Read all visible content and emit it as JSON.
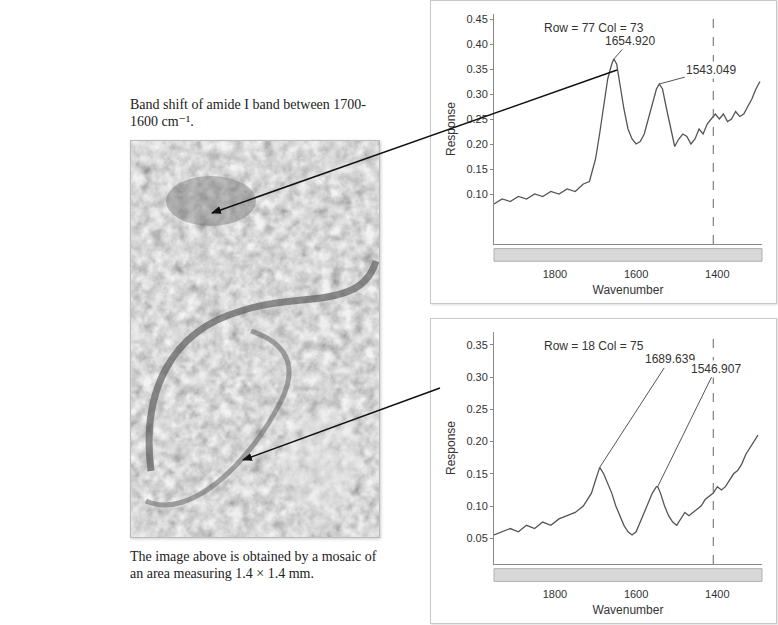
{
  "figure": {
    "title": "Band shift of amide I band between 1700-1600 cm⁻¹.",
    "caption": "The image above is obtained by a mosaic of an area measuring 1.4 × 1.4 mm."
  },
  "chart_data": [
    {
      "type": "line",
      "title": "Row = 77 Col = 73",
      "x_label": "Wavenumber",
      "y_label": "Response",
      "color": "#555555",
      "x": [
        1950,
        1930,
        1910,
        1890,
        1870,
        1850,
        1830,
        1810,
        1790,
        1770,
        1750,
        1730,
        1715,
        1700,
        1690,
        1680,
        1670,
        1660,
        1654.92,
        1648,
        1640,
        1630,
        1620,
        1610,
        1600,
        1590,
        1580,
        1570,
        1560,
        1550,
        1543.049,
        1535,
        1525,
        1515,
        1505,
        1495,
        1485,
        1475,
        1465,
        1455,
        1445,
        1435,
        1425,
        1415,
        1405,
        1395,
        1385,
        1375,
        1365,
        1355,
        1345,
        1335,
        1325,
        1315,
        1305,
        1295
      ],
      "values": [
        0.08,
        0.09,
        0.085,
        0.095,
        0.09,
        0.1,
        0.095,
        0.105,
        0.1,
        0.11,
        0.105,
        0.12,
        0.125,
        0.17,
        0.22,
        0.28,
        0.33,
        0.36,
        0.37,
        0.36,
        0.32,
        0.27,
        0.23,
        0.21,
        0.2,
        0.205,
        0.22,
        0.25,
        0.28,
        0.31,
        0.32,
        0.31,
        0.27,
        0.23,
        0.195,
        0.21,
        0.22,
        0.215,
        0.2,
        0.21,
        0.23,
        0.22,
        0.24,
        0.25,
        0.26,
        0.25,
        0.26,
        0.245,
        0.25,
        0.265,
        0.255,
        0.26,
        0.275,
        0.29,
        0.31,
        0.325
      ],
      "xlim": [
        1950,
        1290
      ],
      "xticks": [
        1800,
        1600,
        1400
      ],
      "ylim": [
        0,
        0.46
      ],
      "yticks": [
        {
          "value": 0.1,
          "label": "0.10"
        },
        0.15,
        {
          "value": 0.2,
          "label": "0.20"
        },
        0.25,
        {
          "value": 0.3,
          "label": "0.30"
        },
        0.35,
        {
          "value": 0.4,
          "label": "0.40"
        },
        0.45
      ],
      "vline": 1410,
      "annotations": [
        {
          "x": 1654.92,
          "label": "1654.920"
        },
        {
          "x": 1543.049,
          "label": "1543.049"
        }
      ]
    },
    {
      "type": "line",
      "title": "Row = 18 Col = 75",
      "x_label": "Wavenumber",
      "y_label": "Response",
      "color": "#555555",
      "x": [
        1950,
        1930,
        1910,
        1890,
        1870,
        1850,
        1830,
        1810,
        1790,
        1770,
        1750,
        1730,
        1710,
        1700,
        1689.639,
        1680,
        1670,
        1660,
        1650,
        1640,
        1630,
        1620,
        1610,
        1600,
        1590,
        1580,
        1570,
        1560,
        1550,
        1546.907,
        1540,
        1530,
        1520,
        1510,
        1500,
        1490,
        1480,
        1470,
        1460,
        1450,
        1440,
        1430,
        1420,
        1410,
        1400,
        1390,
        1380,
        1370,
        1360,
        1350,
        1340,
        1330,
        1320,
        1310,
        1300
      ],
      "values": [
        0.055,
        0.06,
        0.065,
        0.06,
        0.07,
        0.065,
        0.075,
        0.07,
        0.08,
        0.085,
        0.09,
        0.1,
        0.12,
        0.14,
        0.16,
        0.15,
        0.135,
        0.12,
        0.1,
        0.085,
        0.07,
        0.06,
        0.055,
        0.06,
        0.075,
        0.09,
        0.105,
        0.12,
        0.13,
        0.13,
        0.12,
        0.1,
        0.085,
        0.075,
        0.07,
        0.08,
        0.09,
        0.085,
        0.09,
        0.095,
        0.1,
        0.11,
        0.115,
        0.12,
        0.13,
        0.125,
        0.13,
        0.14,
        0.15,
        0.155,
        0.165,
        0.18,
        0.19,
        0.2,
        0.21
      ],
      "xlim": [
        1950,
        1290
      ],
      "xticks": [
        1800,
        1600,
        1400
      ],
      "ylim": [
        0.01,
        0.37
      ],
      "yticks": [
        0.05,
        {
          "value": 0.1,
          "label": "0.10"
        },
        0.15,
        {
          "value": 0.2,
          "label": "0.20"
        },
        0.25,
        {
          "value": 0.3,
          "label": "0.30"
        },
        0.35
      ],
      "vline": 1410,
      "annotations": [
        {
          "x": 1689.639,
          "label": "1689.639"
        },
        {
          "x": 1546.907,
          "label": "1546.907"
        }
      ]
    }
  ]
}
